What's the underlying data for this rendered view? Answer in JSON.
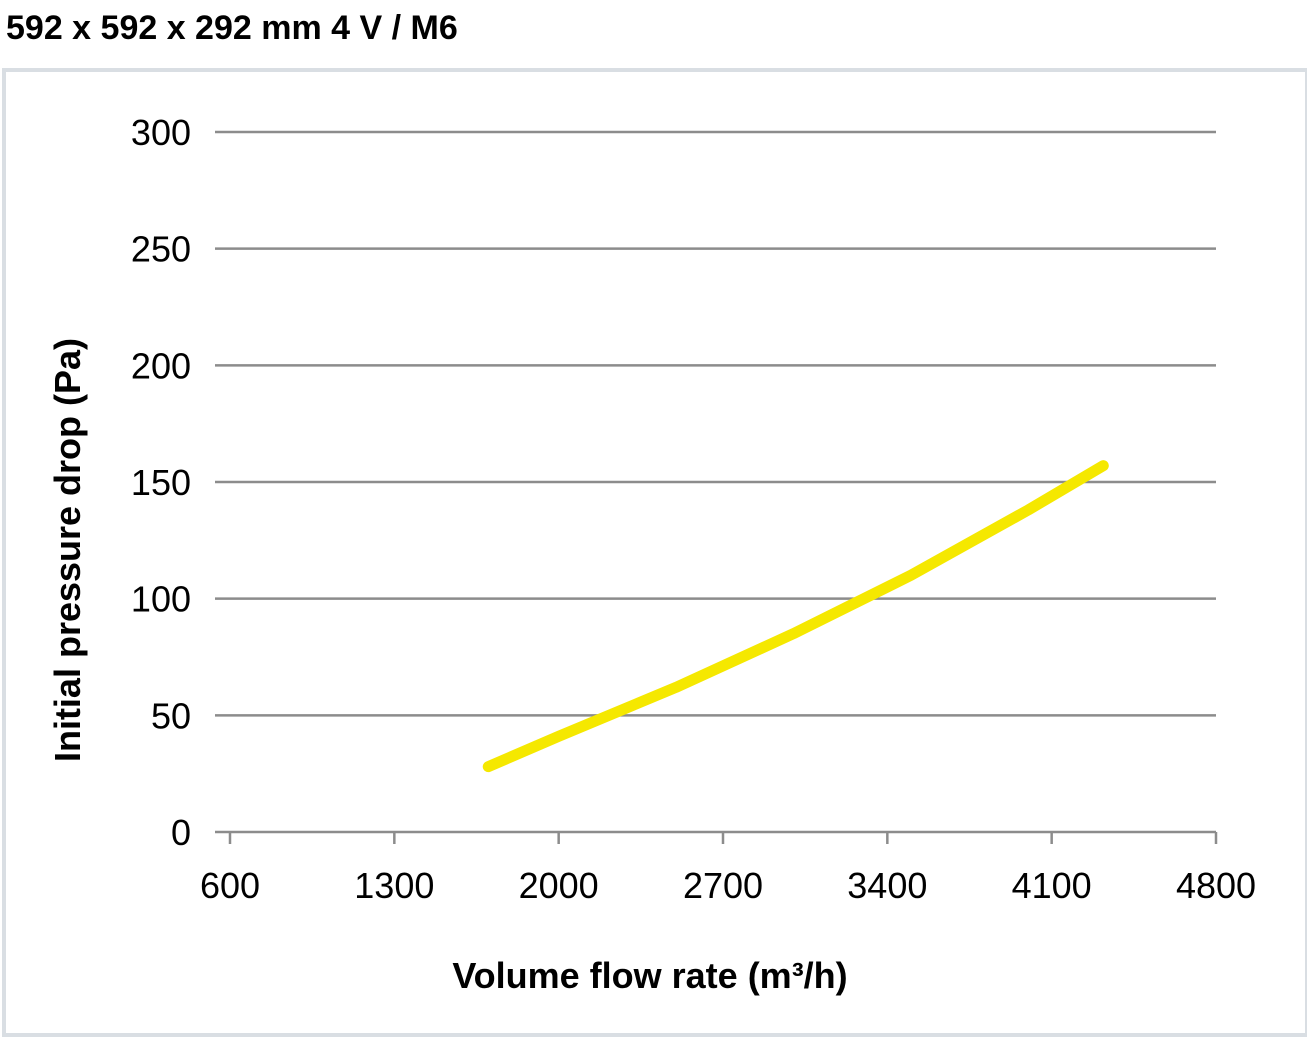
{
  "title": "592 x 592 x 292 mm 4 V / M6",
  "chart_data": {
    "type": "line",
    "title": "592 x 592 x 292 mm 4 V / M6",
    "xlabel": "Volume flow rate (m³/h)",
    "ylabel": "Initial pressure drop (Pa)",
    "xlim": [
      600,
      4800
    ],
    "ylim": [
      0,
      300
    ],
    "x_ticks": [
      600,
      1300,
      2000,
      2700,
      3400,
      4100,
      4800
    ],
    "y_ticks": [
      0,
      50,
      100,
      150,
      200,
      250,
      300
    ],
    "grid": true,
    "series": [
      {
        "color": "#f5e800",
        "x": [
          1700,
          2000,
          2500,
          3000,
          3500,
          4000,
          4320
        ],
        "y": [
          28,
          41,
          62,
          85,
          110,
          138,
          157
        ]
      }
    ]
  }
}
